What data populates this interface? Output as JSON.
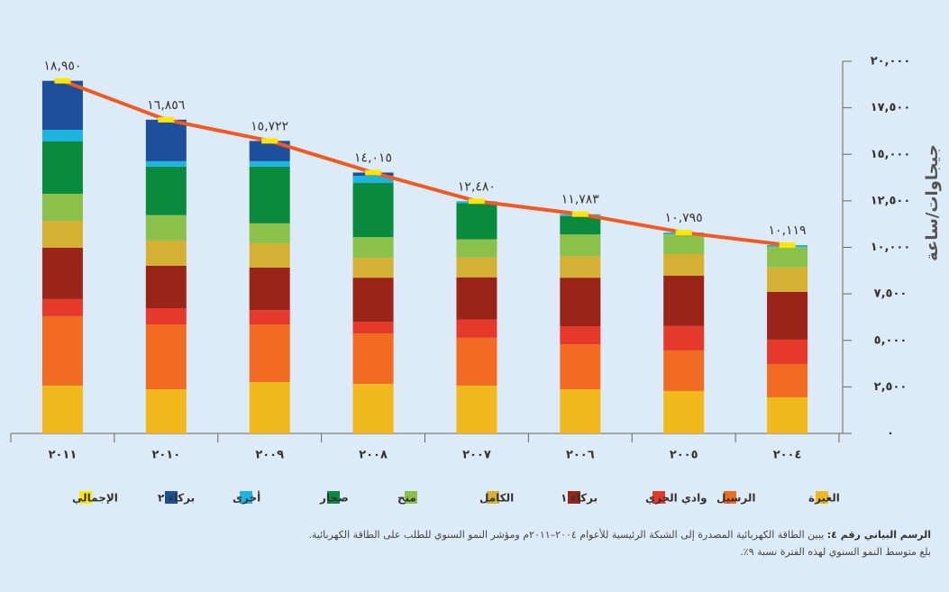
{
  "chart_data": {
    "type": "bar",
    "stacked": true,
    "y_label": "جيجاوات/ساعة",
    "categories": [
      "٢٠١١",
      "٢٠١٠",
      "٢٠٠٩",
      "٢٠٠٨",
      "٢٠٠٧",
      "٢٠٠٦",
      "٢٠٠٥",
      "٢٠٠٤"
    ],
    "series": [
      {
        "name": "الغبرة",
        "color": "#f2b91d",
        "values": [
          2570,
          2370,
          2760,
          2660,
          2570,
          2370,
          2280,
          1940
        ]
      },
      {
        "name": "الرسيل",
        "color": "#f26b22",
        "values": [
          3730,
          3490,
          3100,
          2710,
          2570,
          2420,
          2180,
          1790
        ]
      },
      {
        "name": "وادي الجزي",
        "color": "#e5392b",
        "values": [
          920,
          870,
          770,
          630,
          970,
          970,
          1310,
          1310
        ]
      },
      {
        "name": "بركاء ١",
        "color": "#9a2417",
        "values": [
          2760,
          2280,
          2280,
          2370,
          2280,
          2610,
          2710,
          2570
        ]
      },
      {
        "name": "الكامل",
        "color": "#d5b133",
        "values": [
          1450,
          1360,
          1310,
          1070,
          1070,
          1160,
          1160,
          1310
        ]
      },
      {
        "name": "منح",
        "color": "#8bc04b",
        "values": [
          1450,
          1360,
          1070,
          1110,
          970,
          1160,
          1055,
          1100
        ]
      },
      {
        "name": "صحار",
        "color": "#0a8a3d",
        "values": [
          2810,
          2610,
          3050,
          2910,
          1940,
          990,
          0,
          0
        ]
      },
      {
        "name": "أخرى",
        "color": "#1fb4df",
        "values": [
          630,
          290,
          290,
          390,
          110,
          100,
          100,
          100
        ]
      },
      {
        "name": "بركاء ٢",
        "color": "#1d4f9c",
        "values": [
          2630,
          2230,
          1090,
          170,
          0,
          0,
          0,
          0
        ]
      }
    ],
    "total": {
      "name": "الإجمالي",
      "color": "#f15a22",
      "marker_color": "#ffe600",
      "values": [
        18950,
        16856,
        15722,
        14015,
        12480,
        11783,
        10795,
        10119
      ],
      "value_labels": [
        "١٨,٩٥٠",
        "١٦,٨٥٦",
        "١٥,٧٢٢",
        "١٤,٠١٥",
        "١٢,٤٨٠",
        "١١,٧٨٣",
        "١٠,٧٩٥",
        "١٠,١١٩"
      ]
    },
    "ylim": [
      0,
      20000
    ],
    "yticks": [
      {
        "value": 0,
        "label": "٠"
      },
      {
        "value": 2500,
        "label": "٢,٥٠٠"
      },
      {
        "value": 5000,
        "label": "٥,٠٠٠"
      },
      {
        "value": 7500,
        "label": "٧,٥٠٠"
      },
      {
        "value": 10000,
        "label": "١٠,٠٠٠"
      },
      {
        "value": 12500,
        "label": "١٢,٥٠٠"
      },
      {
        "value": 15000,
        "label": "١٥,٠٠٠"
      },
      {
        "value": 17500,
        "label": "١٧,٥٠٠"
      },
      {
        "value": 20000,
        "label": "٢٠,٠٠٠"
      }
    ],
    "caption_label": "الرسم البياني رقم ٤:",
    "caption_text": "يبين الطاقة الكهربائية المصدرة إلى الشبكة الرئيسية للأعوام ٢٠٠٤–٢٠١١م ومؤشر النمو السنوي للطلب على الطاقة الكهربائية.",
    "caption_note": "بلغ متوسط النمو السنوي لهذه الفترة نسبة ٩٪."
  }
}
